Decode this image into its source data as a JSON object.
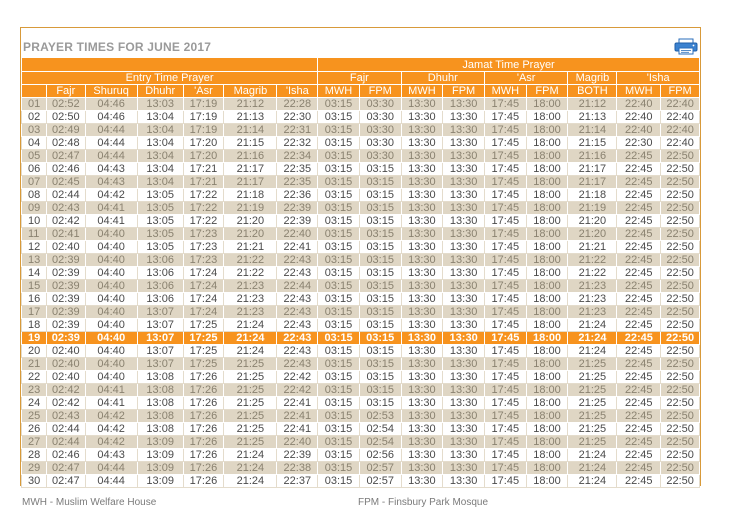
{
  "title": "PRAYER TIMES FOR JUNE 2017",
  "print_icon": "printer-icon",
  "header": {
    "entry_group": "Entry Time Prayer",
    "jamat_group": "Jamat Time Prayer",
    "entry_cols": [
      "Fajr",
      "Shuruq",
      "Dhuhr",
      "'Asr",
      "Magrib",
      "'Isha"
    ],
    "jamat_groups": [
      "Fajr",
      "Dhuhr",
      "'Asr",
      "Magrib",
      "'Isha"
    ],
    "jamat_subcols": [
      "MWH",
      "FPM",
      "MWH",
      "FPM",
      "MWH",
      "FPM",
      "BOTH",
      "MWH",
      "FPM"
    ]
  },
  "highlight_day": "19",
  "colors": {
    "accent": "#f7931e",
    "odd_row": "#dfd6c4",
    "border": "#d89a3a"
  },
  "rows": [
    [
      "01",
      "02:52",
      "04:46",
      "13:03",
      "17:19",
      "21:12",
      "22:28",
      "03:15",
      "03:30",
      "13:30",
      "13:30",
      "17:45",
      "18:00",
      "21:12",
      "22:40",
      "22:40"
    ],
    [
      "02",
      "02:50",
      "04:46",
      "13:04",
      "17:19",
      "21:13",
      "22:30",
      "03:15",
      "03:30",
      "13:30",
      "13:30",
      "17:45",
      "18:00",
      "21:13",
      "22:40",
      "22:40"
    ],
    [
      "03",
      "02:49",
      "04:44",
      "13:04",
      "17:19",
      "21:14",
      "22:31",
      "03:15",
      "03:30",
      "13:30",
      "13:30",
      "17:45",
      "18:00",
      "21:14",
      "22:40",
      "22:40"
    ],
    [
      "04",
      "02:48",
      "04:44",
      "13:04",
      "17:20",
      "21:15",
      "22:32",
      "03:15",
      "03:30",
      "13:30",
      "13:30",
      "17:45",
      "18:00",
      "21:15",
      "22:30",
      "22:40"
    ],
    [
      "05",
      "02:47",
      "04:44",
      "13:04",
      "17:20",
      "21:16",
      "22:34",
      "03:15",
      "03:30",
      "13:30",
      "13:30",
      "17:45",
      "18:00",
      "21:16",
      "22:45",
      "22:50"
    ],
    [
      "06",
      "02:46",
      "04:43",
      "13:04",
      "17:21",
      "21:17",
      "22:35",
      "03:15",
      "03:15",
      "13:30",
      "13:30",
      "17:45",
      "18:00",
      "21:17",
      "22:45",
      "22:50"
    ],
    [
      "07",
      "02:45",
      "04:43",
      "13:04",
      "17:21",
      "21:17",
      "22:35",
      "03:15",
      "03:15",
      "13:30",
      "13:30",
      "17:45",
      "18:00",
      "21:17",
      "22:45",
      "22:50"
    ],
    [
      "08",
      "02:44",
      "04:42",
      "13:05",
      "17:22",
      "21:18",
      "22:36",
      "03:15",
      "03:15",
      "13:30",
      "13:30",
      "17:45",
      "18:00",
      "21:18",
      "22:45",
      "22:50"
    ],
    [
      "09",
      "02:43",
      "04:41",
      "13:05",
      "17:22",
      "21:19",
      "22:39",
      "03:15",
      "03:15",
      "13:30",
      "13:30",
      "17:45",
      "18:00",
      "21:19",
      "22:45",
      "22:50"
    ],
    [
      "10",
      "02:42",
      "04:41",
      "13:05",
      "17:22",
      "21:20",
      "22:39",
      "03:15",
      "03:15",
      "13:30",
      "13:30",
      "17:45",
      "18:00",
      "21:20",
      "22:45",
      "22:50"
    ],
    [
      "11",
      "02:41",
      "04:40",
      "13:05",
      "17:23",
      "21:20",
      "22:40",
      "03:15",
      "03:15",
      "13:30",
      "13:30",
      "17:45",
      "18:00",
      "21:20",
      "22:45",
      "22:50"
    ],
    [
      "12",
      "02:40",
      "04:40",
      "13:05",
      "17:23",
      "21:21",
      "22:41",
      "03:15",
      "03:15",
      "13:30",
      "13:30",
      "17:45",
      "18:00",
      "21:21",
      "22:45",
      "22:50"
    ],
    [
      "13",
      "02:39",
      "04:40",
      "13:06",
      "17:23",
      "21:22",
      "22:43",
      "03:15",
      "03:15",
      "13:30",
      "13:30",
      "17:45",
      "18:00",
      "21:22",
      "22:45",
      "22:50"
    ],
    [
      "14",
      "02:39",
      "04:40",
      "13:06",
      "17:24",
      "21:22",
      "22:43",
      "03:15",
      "03:15",
      "13:30",
      "13:30",
      "17:45",
      "18:00",
      "21:22",
      "22:45",
      "22:50"
    ],
    [
      "15",
      "02:39",
      "04:40",
      "13:06",
      "17:24",
      "21:23",
      "22:44",
      "03:15",
      "03:15",
      "13:30",
      "13:30",
      "17:45",
      "18:00",
      "21:23",
      "22:45",
      "22:50"
    ],
    [
      "16",
      "02:39",
      "04:40",
      "13:06",
      "17:24",
      "21:23",
      "22:43",
      "03:15",
      "03:15",
      "13:30",
      "13:30",
      "17:45",
      "18:00",
      "21:23",
      "22:45",
      "22:50"
    ],
    [
      "17",
      "02:39",
      "04:40",
      "13:07",
      "17:24",
      "21:23",
      "22:43",
      "03:15",
      "03:15",
      "13:30",
      "13:30",
      "17:45",
      "18:00",
      "21:23",
      "22:45",
      "22:50"
    ],
    [
      "18",
      "02:39",
      "04:40",
      "13:07",
      "17:25",
      "21:24",
      "22:43",
      "03:15",
      "03:15",
      "13:30",
      "13:30",
      "17:45",
      "18:00",
      "21:24",
      "22:45",
      "22:50"
    ],
    [
      "19",
      "02:39",
      "04:40",
      "13:07",
      "17:25",
      "21:24",
      "22:43",
      "03:15",
      "03:15",
      "13:30",
      "13:30",
      "17:45",
      "18:00",
      "21:24",
      "22:45",
      "22:50"
    ],
    [
      "20",
      "02:40",
      "04:40",
      "13:07",
      "17:25",
      "21:24",
      "22:43",
      "03:15",
      "03:15",
      "13:30",
      "13:30",
      "17:45",
      "18:00",
      "21:24",
      "22:45",
      "22:50"
    ],
    [
      "21",
      "02:40",
      "04:40",
      "13:07",
      "17:25",
      "21:25",
      "22:43",
      "03:15",
      "03:15",
      "13:30",
      "13:30",
      "17:45",
      "18:00",
      "21:25",
      "22:45",
      "22:50"
    ],
    [
      "22",
      "02:40",
      "04:40",
      "13:08",
      "17:26",
      "21:25",
      "22:42",
      "03:15",
      "03:15",
      "13:30",
      "13:30",
      "17:45",
      "18:00",
      "21:25",
      "22:45",
      "22:50"
    ],
    [
      "23",
      "02:42",
      "04:41",
      "13:08",
      "17:26",
      "21:25",
      "22:42",
      "03:15",
      "03:15",
      "13:30",
      "13:30",
      "17:45",
      "18:00",
      "21:25",
      "22:45",
      "22:50"
    ],
    [
      "24",
      "02:42",
      "04:41",
      "13:08",
      "17:26",
      "21:25",
      "22:41",
      "03:15",
      "03:15",
      "13:30",
      "13:30",
      "17:45",
      "18:00",
      "21:25",
      "22:45",
      "22:50"
    ],
    [
      "25",
      "02:43",
      "04:42",
      "13:08",
      "17:26",
      "21:25",
      "22:41",
      "03:15",
      "02:53",
      "13:30",
      "13:30",
      "17:45",
      "18:00",
      "21:25",
      "22:45",
      "22:50"
    ],
    [
      "26",
      "02:44",
      "04:42",
      "13:08",
      "17:26",
      "21:25",
      "22:41",
      "03:15",
      "02:54",
      "13:30",
      "13:30",
      "17:45",
      "18:00",
      "21:25",
      "22:45",
      "22:50"
    ],
    [
      "27",
      "02:44",
      "04:42",
      "13:09",
      "17:26",
      "21:25",
      "22:40",
      "03:15",
      "02:54",
      "13:30",
      "13:30",
      "17:45",
      "18:00",
      "21:25",
      "22:45",
      "22:50"
    ],
    [
      "28",
      "02:46",
      "04:43",
      "13:09",
      "17:26",
      "21:24",
      "22:39",
      "03:15",
      "02:56",
      "13:30",
      "13:30",
      "17:45",
      "18:00",
      "21:24",
      "22:45",
      "22:50"
    ],
    [
      "29",
      "02:47",
      "04:44",
      "13:09",
      "17:26",
      "21:24",
      "22:38",
      "03:15",
      "02:57",
      "13:30",
      "13:30",
      "17:45",
      "18:00",
      "21:24",
      "22:45",
      "22:50"
    ],
    [
      "30",
      "02:47",
      "04:44",
      "13:09",
      "17:26",
      "21:24",
      "22:37",
      "03:15",
      "02:57",
      "13:30",
      "13:30",
      "17:45",
      "18:00",
      "21:24",
      "22:45",
      "22:50"
    ]
  ],
  "legend": {
    "mwh": "MWH - Muslim Welfare House",
    "fpm": "FPM - Finsbury Park Mosque"
  }
}
